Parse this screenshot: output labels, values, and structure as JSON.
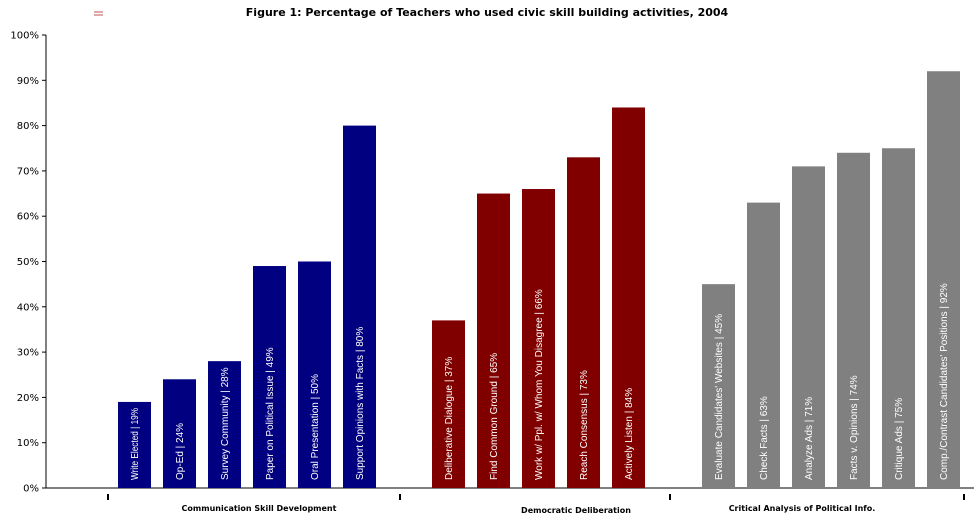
{
  "chart_data": {
    "type": "bar",
    "title": "Figure 1: Percentage of Teachers who used civic skill building activities, 2004",
    "ylim": [
      0,
      100
    ],
    "y_ticks": [
      "0%",
      "10%",
      "20%",
      "30%",
      "40%",
      "50%",
      "60%",
      "70%",
      "80%",
      "90%",
      "100%"
    ],
    "legend_marker_color": "#c0504d",
    "groups": [
      {
        "name": "Communication Skill Development",
        "color": "#000080",
        "bars": [
          {
            "label": "Write Elected",
            "value_label": "19%",
            "value": 19
          },
          {
            "label": "Op-Ed",
            "value_label": "24%",
            "value": 24
          },
          {
            "label": "Survey Community",
            "value_label": "28%",
            "value": 28
          },
          {
            "label": "Paper on Political Issue",
            "value_label": "49%",
            "value": 49
          },
          {
            "label": "Oral Presentation",
            "value_label": "50%",
            "value": 50
          },
          {
            "label": "Support Opinions with Facts",
            "value_label": "80%",
            "value": 80
          }
        ]
      },
      {
        "name": "Democratic Deliberation",
        "color": "#800000",
        "bars": [
          {
            "label": "Deliberative Dialogue",
            "value_label": "37%",
            "value": 37
          },
          {
            "label": "Find Common Ground",
            "value_label": "65%",
            "value": 65
          },
          {
            "label": "Work w/ Ppl. w/ Whom You Disagree",
            "value_label": "66%",
            "value": 66
          },
          {
            "label": "Reach Consensus",
            "value_label": "73%",
            "value": 73
          },
          {
            "label": "Actively Listen",
            "value_label": "84%",
            "value": 84
          }
        ]
      },
      {
        "name": "Critical Analysis of Political Info.",
        "color": "#808080",
        "bars": [
          {
            "label": "Evaluate Candidates' Websites",
            "value_label": "45%",
            "value": 45
          },
          {
            "label": "Check Facts",
            "value_label": "63%",
            "value": 63
          },
          {
            "label": "Analyze Ads",
            "value_label": "71%",
            "value": 71
          },
          {
            "label": "Facts v. Opinions",
            "value_label": "74%",
            "value": 74
          },
          {
            "label": "Critique Ads",
            "value_label": "75%",
            "value": 75
          },
          {
            "label": "Comp./Contrast Candidates' Positions",
            "value_label": "92%",
            "value": 92
          }
        ]
      }
    ]
  }
}
